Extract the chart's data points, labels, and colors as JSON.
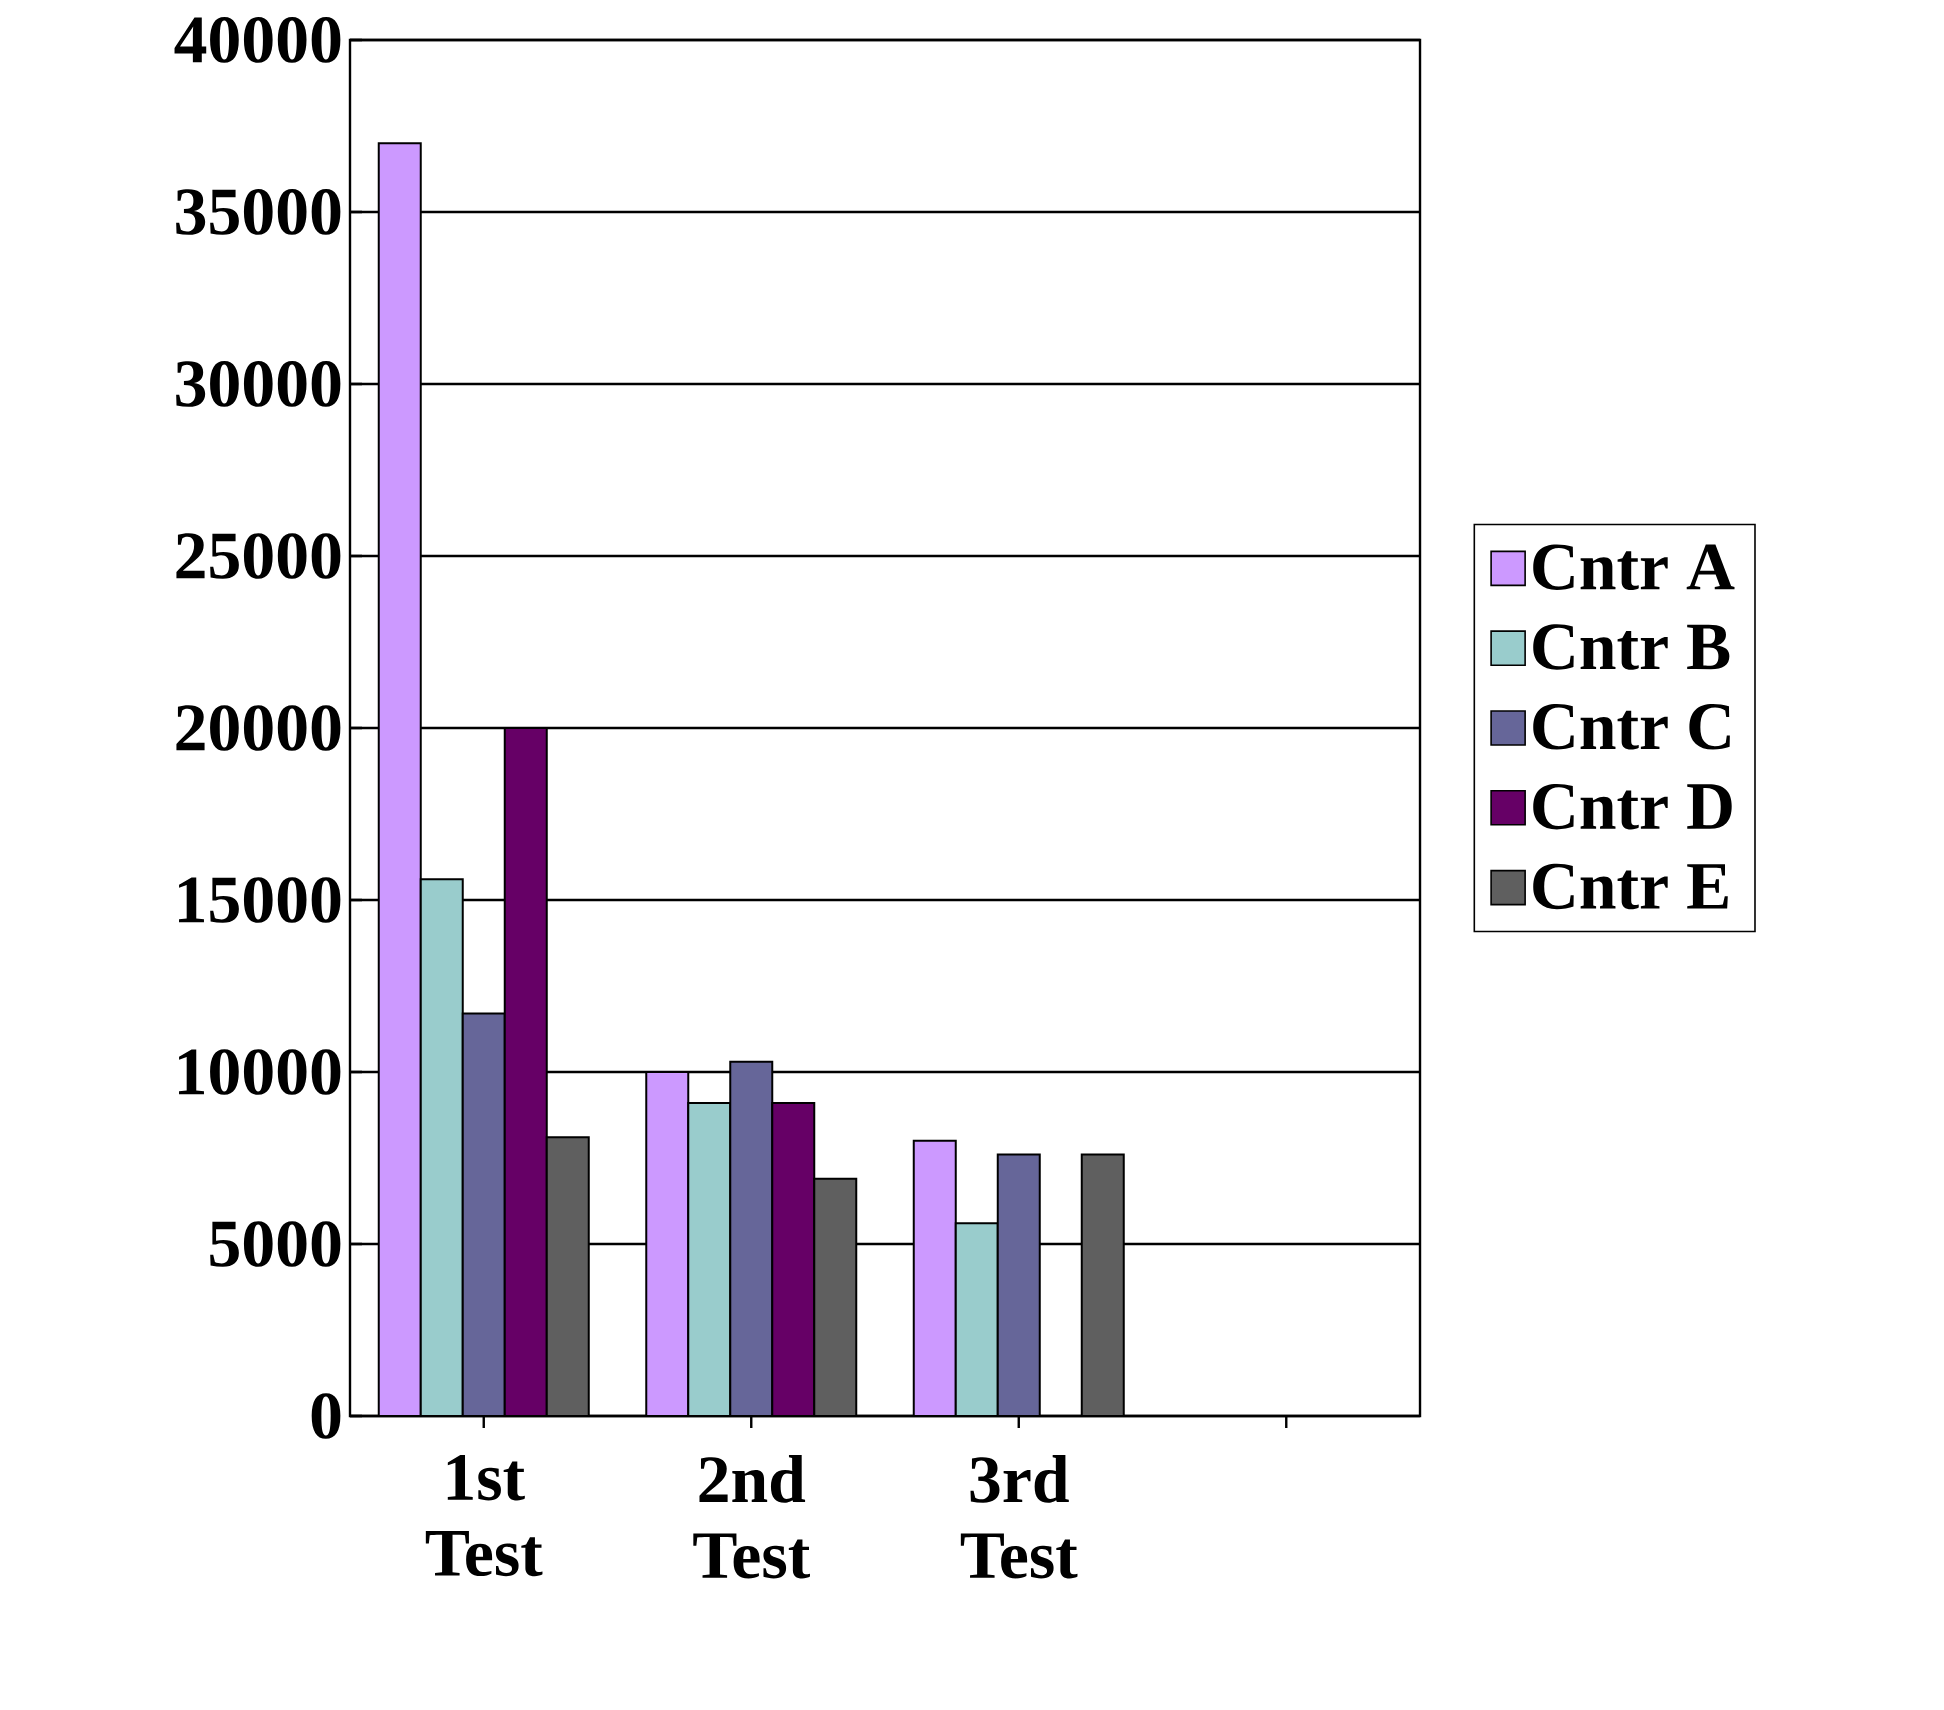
{
  "chart_data": {
    "type": "bar",
    "categories": [
      "1st Test",
      "2nd Test",
      "3rd Test",
      null
    ],
    "series": [
      {
        "name": "Cntr A",
        "color": "#cc99ff",
        "values": [
          37000,
          10000,
          8000,
          null
        ]
      },
      {
        "name": "Cntr B",
        "color": "#99cccc",
        "values": [
          15600,
          9100,
          5600,
          null
        ]
      },
      {
        "name": "Cntr C",
        "color": "#666699",
        "values": [
          11700,
          10300,
          7600,
          null
        ]
      },
      {
        "name": "Cntr D",
        "color": "#660066",
        "values": [
          20000,
          9100,
          null,
          null
        ]
      },
      {
        "name": "Cntr E",
        "color": "#5f5f5f",
        "values": [
          8100,
          6900,
          7600,
          null
        ]
      }
    ],
    "ylim": [
      0,
      40000
    ],
    "yticks": [
      0,
      5000,
      10000,
      15000,
      20000,
      25000,
      30000,
      35000,
      40000
    ],
    "grid": "y",
    "legend": "right"
  }
}
